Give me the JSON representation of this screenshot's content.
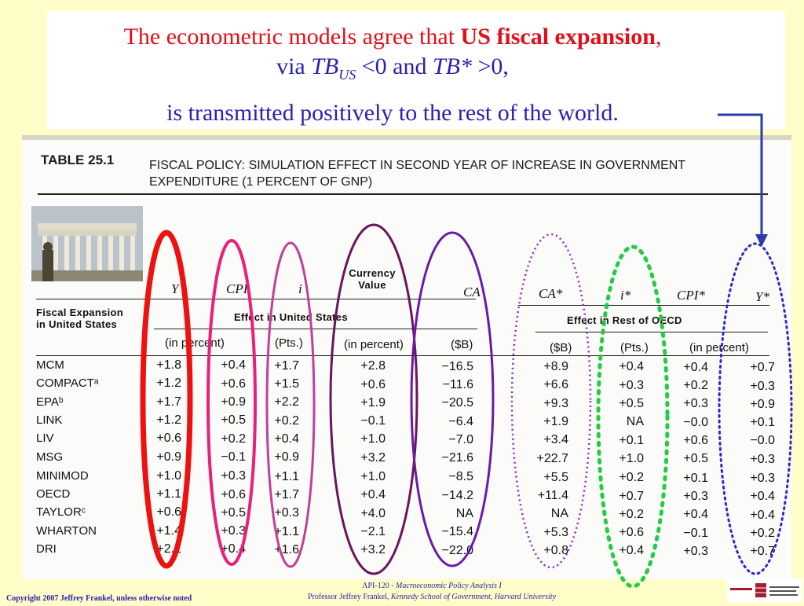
{
  "slide": {
    "title_line1_pre": "The econometric models agree that ",
    "title_line1_bold": "US fiscal expansion",
    "title_line1_post": ",",
    "title_line2_pre": "via ",
    "title_line2_tb": "TB",
    "title_line2_sub": "US",
    "title_line2_mid": " <0 and ",
    "title_line2_tbstar": "TB* ",
    "title_line2_post": ">0,",
    "title_line3": "is transmitted positively to the rest of the world.",
    "arrow_color": "#2a3aa8"
  },
  "table": {
    "label": "TABLE 25.1",
    "caption_line1": "FISCAL POLICY: SIMULATION EFFECT IN SECOND YEAR OF INCREASE IN GOVERNMENT",
    "caption_line2": "EXPENDITURE (1 PERCENT OF GNP)",
    "row_header_line1": "Fiscal Expansion",
    "row_header_line2": "in United States",
    "col_headers": [
      "Y",
      "CPI",
      "i",
      "CA",
      "CA*",
      "i*",
      "CPI*",
      "Y*"
    ],
    "currency_line1": "Currency",
    "currency_line2": "Value",
    "group_us": "Effect in United States",
    "group_oecd": "Effect in Rest of OECD",
    "units": [
      "(in percent)",
      "(Pts.)",
      "(in percent)",
      "($B)",
      "($B)",
      "(Pts.)",
      "(in percent)"
    ],
    "rows": [
      {
        "name": "MCM",
        "values": [
          "+1.8",
          "+0.4",
          "+1.7",
          "+2.8",
          "−16.5",
          "+8.9",
          "+0.4",
          "+0.4",
          "+0.7"
        ]
      },
      {
        "name": "COMPACTᵃ",
        "values": [
          "+1.2",
          "+0.6",
          "+1.5",
          "+0.6",
          "−11.6",
          "+6.6",
          "+0.3",
          "+0.2",
          "+0.3"
        ]
      },
      {
        "name": "EPAᵇ",
        "values": [
          "+1.7",
          "+0.9",
          "+2.2",
          "+1.9",
          "−20.5",
          "+9.3",
          "+0.5",
          "+0.3",
          "+0.9"
        ]
      },
      {
        "name": "LINK",
        "values": [
          "+1.2",
          "+0.5",
          "+0.2",
          "−0.1",
          "−6.4",
          "+1.9",
          "NA",
          "−0.0",
          "+0.1"
        ]
      },
      {
        "name": "LIV",
        "values": [
          "+0.6",
          "+0.2",
          "+0.4",
          "+1.0",
          "−7.0",
          "+3.4",
          "+0.1",
          "+0.6",
          "−0.0"
        ]
      },
      {
        "name": "MSG",
        "values": [
          "+0.9",
          "−0.1",
          "+0.9",
          "+3.2",
          "−21.6",
          "+22.7",
          "+1.0",
          "+0.5",
          "+0.3"
        ]
      },
      {
        "name": "MINIMOD",
        "values": [
          "+1.0",
          "+0.3",
          "+1.1",
          "+1.0",
          "−8.5",
          "+5.5",
          "+0.2",
          "+0.1",
          "+0.3"
        ]
      },
      {
        "name": "OECD",
        "values": [
          "+1.1",
          "+0.6",
          "+1.7",
          "+0.4",
          "−14.2",
          "+11.4",
          "+0.7",
          "+0.3",
          "+0.4"
        ]
      },
      {
        "name": "TAYLORᶜ",
        "values": [
          "+0.6",
          "+0.5",
          "+0.3",
          "+4.0",
          "NA",
          "NA",
          "+0.2",
          "+0.4",
          "+0.4"
        ]
      },
      {
        "name": "WHARTON",
        "values": [
          "+1.4",
          "+0.3",
          "+1.1",
          "−2.1",
          "−15.4",
          "+5.3",
          "+0.6",
          "−0.1",
          "+0.2"
        ]
      },
      {
        "name": "DRI",
        "values": [
          "+2.1",
          "+0.4",
          "+1.6",
          "+3.2",
          "−22.0",
          "+0.8",
          "+0.4",
          "+0.3",
          "+0.7"
        ]
      }
    ]
  },
  "footer": {
    "copyright": "Copyright 2007 Jeffrey Frankel, unless otherwise noted",
    "course_code": "API-120 - ",
    "course_name": "Macroeconomic Policy Analysis I",
    "professor": "Professor Jeffrey Frankel, ",
    "school": "Kennedy School of Government, Harvard University"
  },
  "colors": {
    "background": "#fffdc8",
    "title_red": "#e0101a",
    "title_blue": "#2a22b0",
    "oval_y": "#ee1111",
    "oval_cpi": "#e8207a",
    "oval_i": "#c0409a",
    "oval_currency": "#6a1460",
    "oval_ca": "#6a1aa8",
    "oval_ca_star": "#8a2ac8",
    "oval_i_star": "#22cc44",
    "oval_y_star": "#2a2acc"
  }
}
